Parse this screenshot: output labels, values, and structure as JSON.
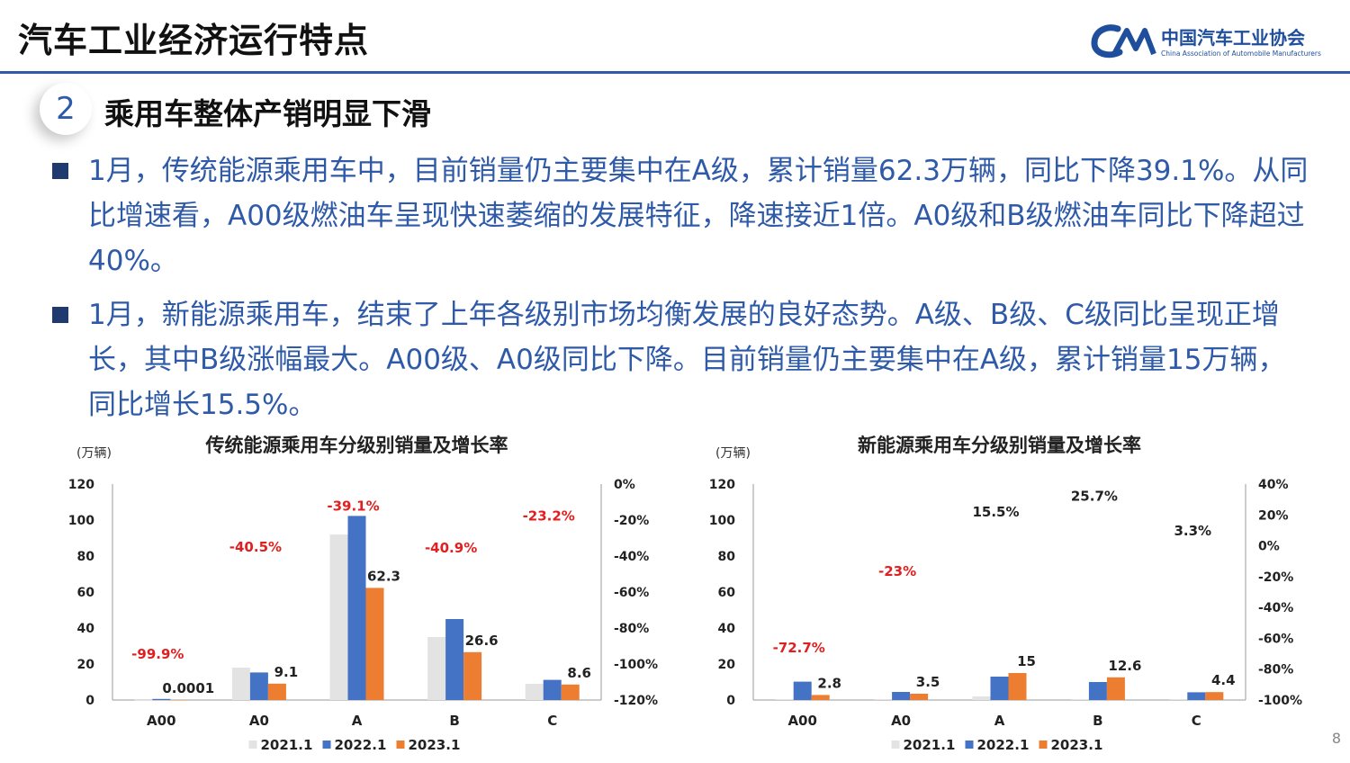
{
  "header": {
    "title": "汽车工业经济运行特点",
    "logo_cn": "中国汽车工业协会",
    "logo_en": "China Association of Automobile Manufacturers"
  },
  "section": {
    "number": "2",
    "title": "乘用车整体产销明显下滑"
  },
  "paragraphs": [
    "1月，传统能源乘用车中，目前销量仍主要集中在A级，累计销量62.3万辆，同比下降39.1%。从同比增速看，A00级燃油车呈现快速萎缩的发展特征，降速接近1倍。A0级和B级燃油车同比下降超过40%。",
    "1月，新能源乘用车，结束了上年各级别市场均衡发展的良好态势。A级、B级、C级同比呈现正增长，其中B级涨幅最大。A00级、A0级同比下降。目前销量仍主要集中在A级，累计销量15万辆，同比增长15.5%。"
  ],
  "page_number": "8",
  "colors": {
    "s2021": "#e3e3e3",
    "s2022": "#4472c4",
    "s2023": "#ed7d31",
    "growth": "#e02020",
    "accent": "#2e5aa8"
  },
  "chart_data": [
    {
      "type": "bar",
      "title": "传统能源乘用车分级别销量及增长率",
      "unit": "(万辆)",
      "categories": [
        "A00",
        "A0",
        "A",
        "B",
        "C"
      ],
      "series": [
        {
          "name": "2021.1",
          "values": [
            0.1,
            18,
            92,
            35,
            9
          ]
        },
        {
          "name": "2022.1",
          "values": [
            0.6,
            15.3,
            102.3,
            45,
            11.2
          ]
        },
        {
          "name": "2023.1",
          "values": [
            0.0001,
            9.1,
            62.3,
            26.6,
            8.6
          ]
        }
      ],
      "value_labels": [
        "0.0001",
        "9.1",
        "62.3",
        "26.6",
        "8.6"
      ],
      "growth_labels": [
        "-99.9%",
        "-40.5%",
        "-39.1%",
        "-40.9%",
        "-23.2%"
      ],
      "growth_values": [
        -99.9,
        -40.5,
        -39.1,
        -40.9,
        -23.2
      ],
      "ylim": [
        0,
        120
      ],
      "yticks": [
        "0",
        "20",
        "40",
        "60",
        "80",
        "100",
        "120"
      ],
      "y2lim": [
        -120,
        0
      ],
      "y2ticks": [
        "-120%",
        "-100%",
        "-80%",
        "-60%",
        "-40%",
        "-20%",
        "0%"
      ],
      "legend": "bottom"
    },
    {
      "type": "bar",
      "title": "新能源乘用车分级别销量及增长率",
      "unit": "(万辆)",
      "categories": [
        "A00",
        "A0",
        "A",
        "B",
        "C"
      ],
      "series": [
        {
          "name": "2021.1",
          "values": [
            0.5,
            0.5,
            2,
            0.5,
            0.5
          ]
        },
        {
          "name": "2022.1",
          "values": [
            10.2,
            4.5,
            13,
            10,
            4.3
          ]
        },
        {
          "name": "2023.1",
          "values": [
            2.8,
            3.5,
            15,
            12.6,
            4.4
          ]
        }
      ],
      "value_labels": [
        "2.8",
        "3.5",
        "15",
        "12.6",
        "4.4"
      ],
      "growth_labels": [
        "-72.7%",
        "-23%",
        "15.5%",
        "25.7%",
        "3.3%"
      ],
      "growth_values": [
        -72.7,
        -23,
        15.5,
        25.7,
        3.3
      ],
      "ylim": [
        0,
        120
      ],
      "yticks": [
        "0",
        "20",
        "40",
        "60",
        "80",
        "100",
        "120"
      ],
      "y2lim": [
        -100,
        40
      ],
      "y2ticks": [
        "-100%",
        "-80%",
        "-60%",
        "-40%",
        "-20%",
        "0%",
        "20%",
        "40%"
      ],
      "legend": "bottom"
    }
  ]
}
